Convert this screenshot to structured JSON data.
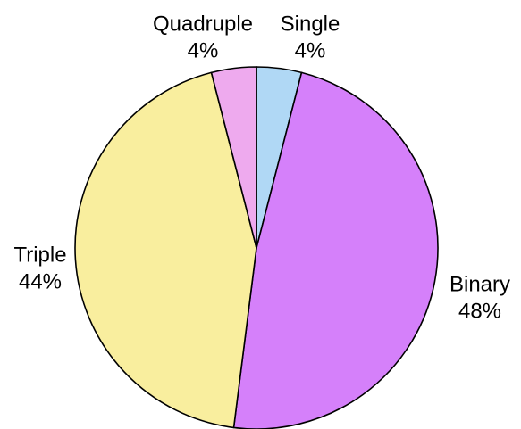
{
  "chart_data": {
    "type": "pie",
    "categories": [
      "Single",
      "Binary",
      "Triple",
      "Quadruple"
    ],
    "values": [
      4,
      48,
      44,
      4
    ],
    "value_labels": [
      "4%",
      "48%",
      "44%",
      "4%"
    ],
    "colors": [
      "#b0d8f5",
      "#d580fa",
      "#f9ee9e",
      "#eeaaee"
    ]
  }
}
